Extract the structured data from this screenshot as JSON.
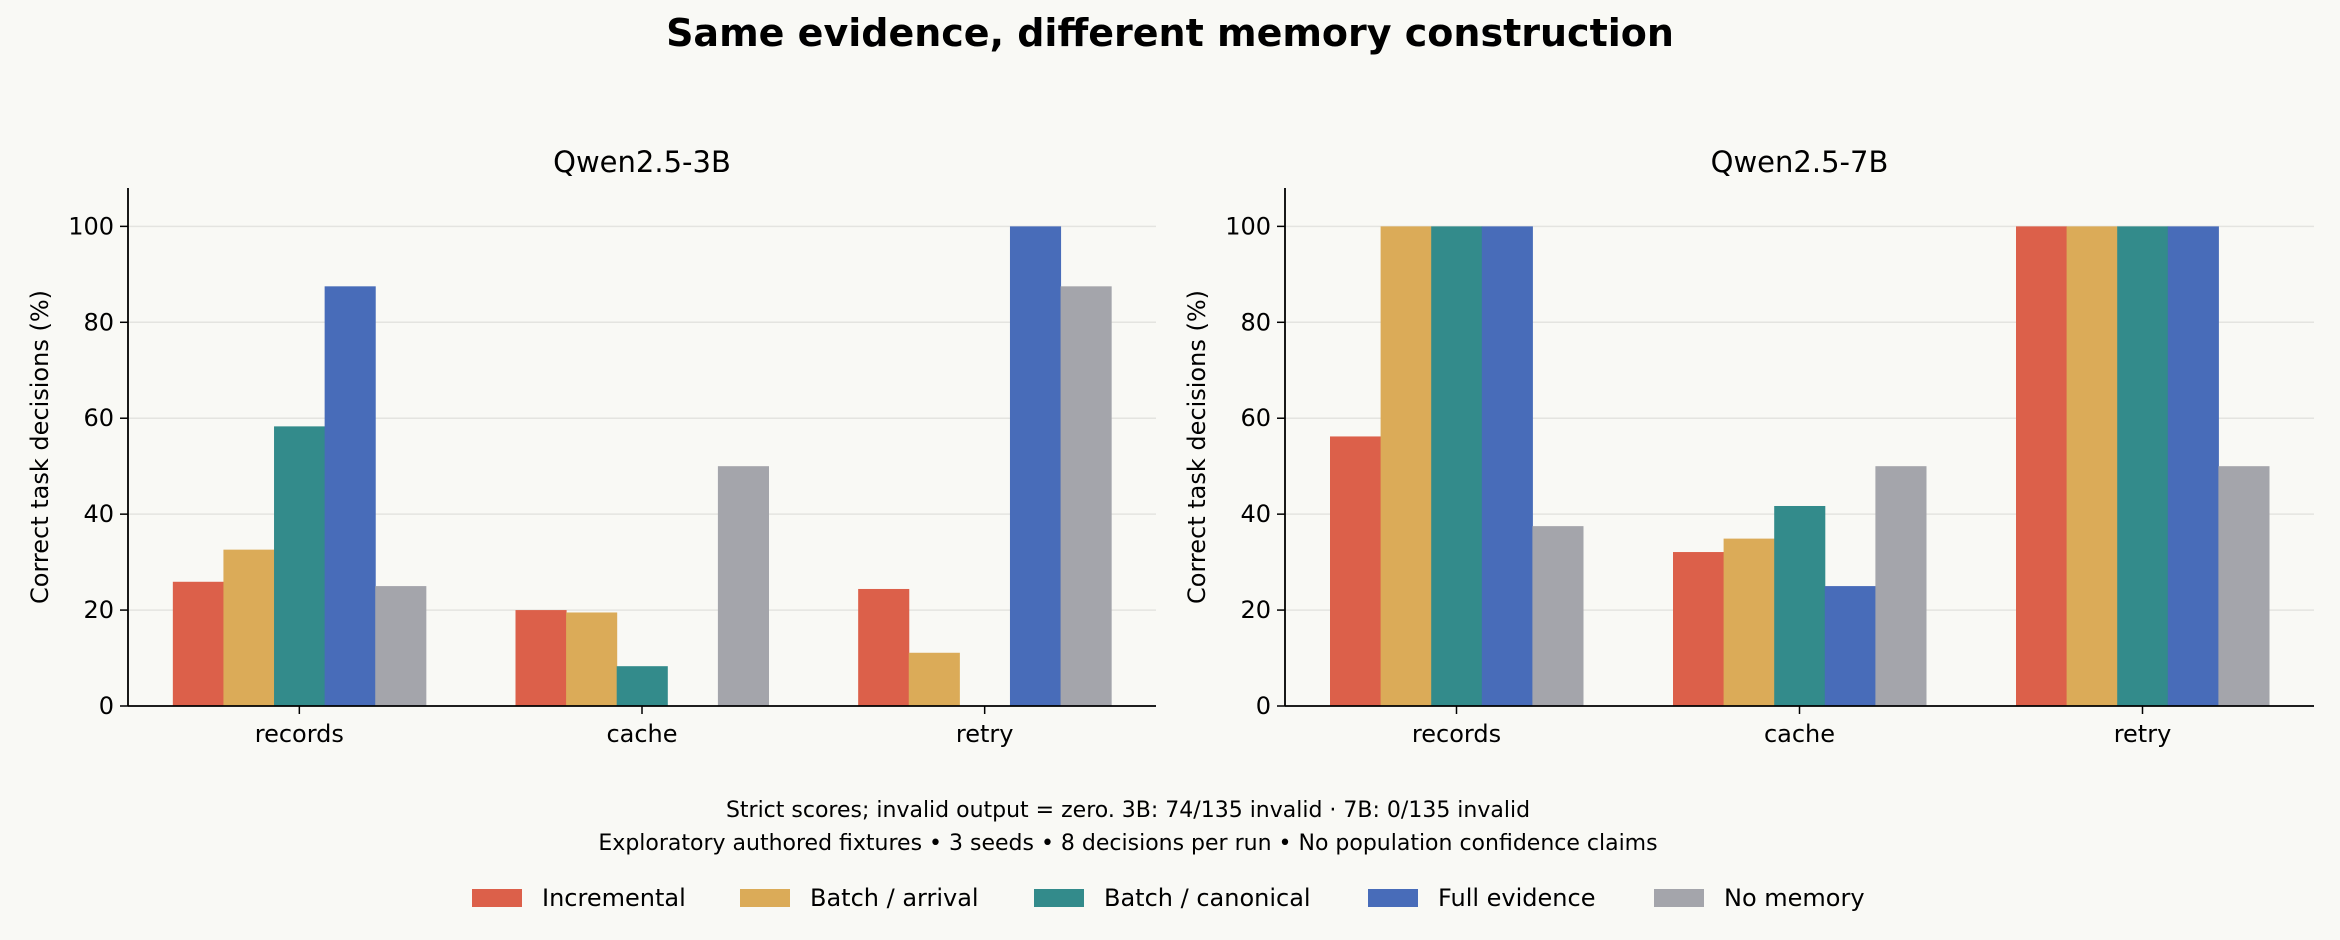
{
  "title": "Same evidence, different memory construction",
  "notes": {
    "line1": "Strict scores; invalid output = zero. 3B: 74/135 invalid · 7B: 0/135 invalid",
    "line2": "Exploratory authored fixtures • 3 seeds • 8 decisions per run • No population confidence claims"
  },
  "legend": [
    {
      "name": "Incremental",
      "color": "#dc604a"
    },
    {
      "name": "Batch / arrival",
      "color": "#dbab58"
    },
    {
      "name": "Batch / canonical",
      "color": "#338b8b"
    },
    {
      "name": "Full evidence",
      "color": "#486cb9"
    },
    {
      "name": "No memory",
      "color": "#a4a5ab"
    }
  ],
  "chart_data": [
    {
      "type": "bar",
      "title": "Qwen2.5-3B",
      "ylabel": "Correct task decisions (%)",
      "xlabel": "",
      "ylim": [
        0,
        108
      ],
      "yticks": [
        0,
        20,
        40,
        60,
        80,
        100
      ],
      "grid": true,
      "categories": [
        "records",
        "cache",
        "retry"
      ],
      "series": [
        {
          "name": "Incremental",
          "values": [
            25.9,
            20.0,
            24.4
          ]
        },
        {
          "name": "Batch / arrival",
          "values": [
            32.6,
            19.5,
            11.1
          ]
        },
        {
          "name": "Batch / canonical",
          "values": [
            58.3,
            8.3,
            0
          ]
        },
        {
          "name": "Full evidence",
          "values": [
            87.5,
            0,
            100
          ]
        },
        {
          "name": "No memory",
          "values": [
            25.0,
            50.0,
            87.5
          ]
        }
      ]
    },
    {
      "type": "bar",
      "title": "Qwen2.5-7B",
      "ylabel": "Correct task decisions (%)",
      "xlabel": "",
      "ylim": [
        0,
        108
      ],
      "yticks": [
        0,
        20,
        40,
        60,
        80,
        100
      ],
      "grid": true,
      "categories": [
        "records",
        "cache",
        "retry"
      ],
      "series": [
        {
          "name": "Incremental",
          "values": [
            56.2,
            32.1,
            100
          ]
        },
        {
          "name": "Batch / arrival",
          "values": [
            100,
            34.9,
            100
          ]
        },
        {
          "name": "Batch / canonical",
          "values": [
            100,
            41.7,
            100
          ]
        },
        {
          "name": "Full evidence",
          "values": [
            100,
            25.0,
            100
          ]
        },
        {
          "name": "No memory",
          "values": [
            37.5,
            50.0,
            50.0
          ]
        }
      ]
    }
  ]
}
